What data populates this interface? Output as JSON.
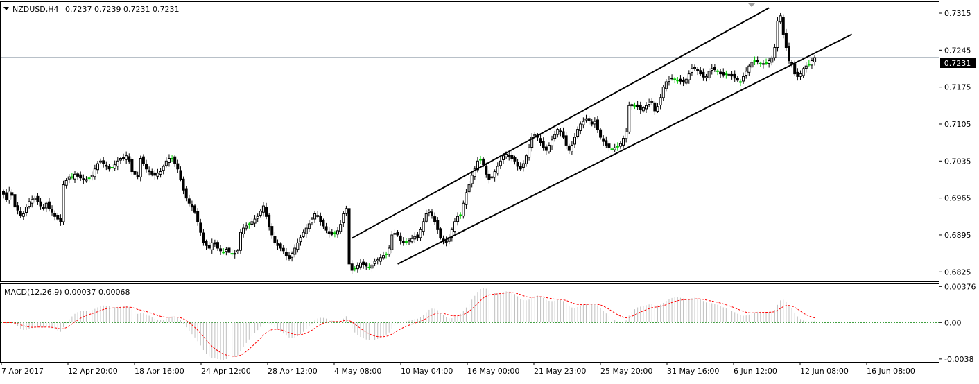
{
  "header": {
    "symbol": "NZDUSD,H4",
    "ohlc_text": "0.7237 0.7239 0.7231 0.7231"
  },
  "indicator": {
    "label": "MACD(12,26,9) 0.00037 0.00068"
  },
  "colors": {
    "background": "#ffffff",
    "candle": "#000000",
    "doji_candle": "#00c800",
    "macd_histogram": "#c0c0c0",
    "signal_line": "#ff0000",
    "zero_line": "#008000",
    "price_line": "#708090",
    "current_price_box": "#000000"
  },
  "chart_data": [
    {
      "type": "candlestick",
      "instrument": "NZDUSD",
      "timeframe": "H4",
      "x_tick_labels": [
        "7 Apr 2017",
        "12 Apr 20:00",
        "18 Apr 16:00",
        "24 Apr 12:00",
        "28 Apr 12:00",
        "4 May 08:00",
        "10 May 04:00",
        "16 May 00:00",
        "21 May 23:00",
        "25 May 20:00",
        "31 May 16:00",
        "6 Jun 12:00",
        "12 Jun 08:00",
        "16 Jun 08:00"
      ],
      "y_tick_labels": [
        "0.7315",
        "0.7245",
        "0.7175",
        "0.7105",
        "0.7035",
        "0.6965",
        "0.6895",
        "0.6825"
      ],
      "y_ticks": [
        0.7315,
        0.7245,
        0.7175,
        0.7105,
        0.7035,
        0.6965,
        0.6895,
        0.6825
      ],
      "ylim": [
        0.6807,
        0.7336
      ],
      "current_price": "0.7231",
      "close_series": [
        0.6972,
        0.6962,
        0.6978,
        0.697,
        0.6948,
        0.6942,
        0.6932,
        0.6935,
        0.6948,
        0.6958,
        0.6962,
        0.6965,
        0.6958,
        0.695,
        0.6945,
        0.6955,
        0.6945,
        0.6938,
        0.693,
        0.6925,
        0.692,
        0.699,
        0.6998,
        0.7005,
        0.7004,
        0.701,
        0.7006,
        0.7003,
        0.7,
        0.7,
        0.7003,
        0.7008,
        0.702,
        0.703,
        0.7035,
        0.703,
        0.7025,
        0.702,
        0.7022,
        0.7028,
        0.7035,
        0.704,
        0.704,
        0.7045,
        0.7035,
        0.7015,
        0.701,
        0.7005,
        0.704,
        0.703,
        0.702,
        0.7015,
        0.701,
        0.7008,
        0.7012,
        0.7015,
        0.7025,
        0.7035,
        0.704,
        0.704,
        0.703,
        0.702,
        0.7,
        0.698,
        0.6965,
        0.6955,
        0.6948,
        0.6938,
        0.692,
        0.69,
        0.688,
        0.6875,
        0.687,
        0.688,
        0.6878,
        0.687,
        0.6865,
        0.6862,
        0.6868,
        0.6862,
        0.686,
        0.686,
        0.6865,
        0.69,
        0.6908,
        0.6912,
        0.6916,
        0.692,
        0.6925,
        0.693,
        0.694,
        0.695,
        0.693,
        0.691,
        0.6895,
        0.688,
        0.6875,
        0.687,
        0.6865,
        0.6855,
        0.685,
        0.686,
        0.687,
        0.688,
        0.689,
        0.69,
        0.6908,
        0.6916,
        0.6925,
        0.6935,
        0.693,
        0.692,
        0.6912,
        0.6904,
        0.6898,
        0.6896,
        0.6899,
        0.6903,
        0.6915,
        0.6935,
        0.6945,
        0.684,
        0.6828,
        0.6832,
        0.6837,
        0.6842,
        0.6838,
        0.6836,
        0.6834,
        0.6838,
        0.6845,
        0.6848,
        0.6852,
        0.6856,
        0.6859,
        0.687,
        0.6895,
        0.6898,
        0.6895,
        0.6885,
        0.688,
        0.6882,
        0.6885,
        0.6888,
        0.6892,
        0.689,
        0.6905,
        0.692,
        0.6935,
        0.694,
        0.6932,
        0.692,
        0.6905,
        0.689,
        0.6885,
        0.688,
        0.689,
        0.6905,
        0.692,
        0.693,
        0.6932,
        0.6955,
        0.6975,
        0.699,
        0.7008,
        0.702,
        0.7035,
        0.7038,
        0.7028,
        0.701,
        0.7,
        0.7005,
        0.7015,
        0.7025,
        0.7035,
        0.7045,
        0.7048,
        0.7044,
        0.704,
        0.7035,
        0.7025,
        0.702,
        0.703,
        0.7045,
        0.706,
        0.708,
        0.7085,
        0.708,
        0.707,
        0.706,
        0.7055,
        0.7065,
        0.7075,
        0.7085,
        0.7095,
        0.709,
        0.708,
        0.7065,
        0.7055,
        0.7065,
        0.708,
        0.7095,
        0.7105,
        0.711,
        0.7115,
        0.7112,
        0.7105,
        0.711,
        0.7095,
        0.708,
        0.7072,
        0.7065,
        0.706,
        0.7058,
        0.706,
        0.7062,
        0.7068,
        0.7078,
        0.709,
        0.714,
        0.7142,
        0.714,
        0.7138,
        0.7132,
        0.7136,
        0.714,
        0.7145,
        0.7148,
        0.713,
        0.7138,
        0.7155,
        0.7175,
        0.7185,
        0.7188,
        0.7192,
        0.719,
        0.7188,
        0.7186,
        0.7185,
        0.719,
        0.72,
        0.721,
        0.7212,
        0.7206,
        0.72,
        0.7194,
        0.7195,
        0.7205,
        0.721,
        0.7208,
        0.7205,
        0.72,
        0.7198,
        0.72,
        0.7199,
        0.7196,
        0.7192,
        0.7188,
        0.7185,
        0.7195,
        0.7205,
        0.7215,
        0.7222,
        0.7225,
        0.7223,
        0.722,
        0.7218,
        0.722,
        0.7225,
        0.723,
        0.725,
        0.73,
        0.731,
        0.7275,
        0.725,
        0.7225,
        0.722,
        0.72,
        0.7195,
        0.72,
        0.721,
        0.7215,
        0.7218,
        0.7225,
        0.7231
      ],
      "annotations": [
        {
          "type": "trendline",
          "name": "upper-channel-line",
          "from_index": 122,
          "from_price": 0.6889,
          "to_index": 268,
          "to_price": 0.7325
        },
        {
          "type": "trendline",
          "name": "lower-channel-line",
          "from_index": 138,
          "from_price": 0.684,
          "to_index": 297,
          "to_price": 0.7275
        },
        {
          "type": "horizontal-line",
          "name": "current-price-line",
          "price": 0.7231
        }
      ]
    },
    {
      "type": "macd-histogram",
      "title": "MACD(12,26,9) 0.00037 0.00068",
      "y_tick_labels": [
        "0.00376",
        "0.00",
        "-0.0038"
      ],
      "y_ticks": [
        0.00376,
        0.0,
        -0.0038
      ],
      "ylim": [
        -0.0041,
        0.004
      ],
      "macd_value": 0.00037,
      "signal_value": 0.00068
    }
  ]
}
